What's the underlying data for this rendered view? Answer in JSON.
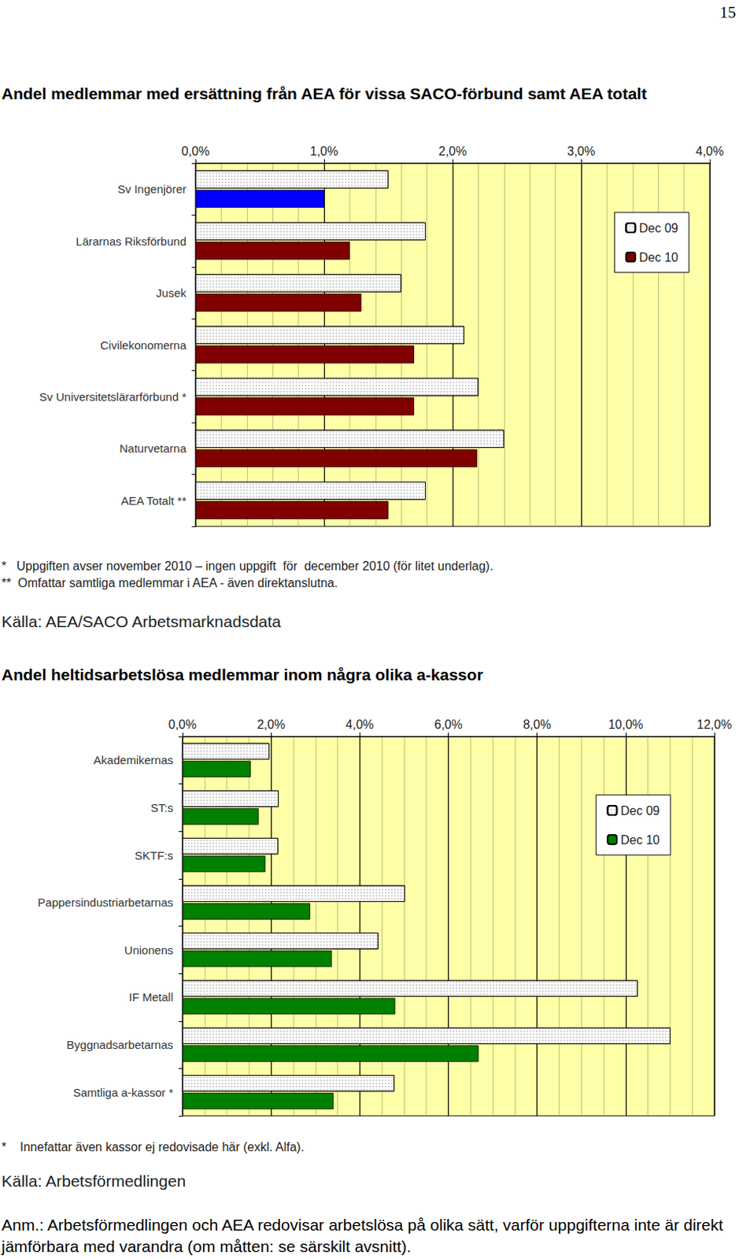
{
  "page_number": "15",
  "chart_data": [
    {
      "type": "bar",
      "orientation": "horizontal",
      "title": "Andel medlemmar med ersättning från AEA för vissa SACO-förbund samt AEA totalt",
      "categories": [
        "Sv Ingenjörer",
        "Lärarnas Riksförbund",
        "Jusek",
        "Civilekonomerna",
        "Sv Universitetslärarförbund *",
        "Naturvetarna",
        "AEA Totalt **"
      ],
      "series": [
        {
          "name": "Dec 09",
          "color": "#ffffff",
          "values": [
            1.5,
            1.79,
            1.6,
            2.09,
            2.2,
            2.4,
            1.79
          ]
        },
        {
          "name": "Dec 10",
          "color": "#800000",
          "colors": [
            "#0000ff",
            "#800000",
            "#800000",
            "#800000",
            "#800000",
            "#800000",
            "#800000"
          ],
          "values": [
            1.0,
            1.2,
            1.29,
            1.7,
            1.7,
            2.19,
            1.5
          ]
        }
      ],
      "xlim": [
        0,
        4
      ],
      "xticks": [
        {
          "value": 0,
          "label": "0,0%"
        },
        {
          "value": 1,
          "label": "1,0%"
        },
        {
          "value": 2,
          "label": "2,0%"
        },
        {
          "value": 3,
          "label": "3,0%"
        },
        {
          "value": 4,
          "label": "4,0%"
        }
      ],
      "grid": true,
      "legend": "upper right",
      "annotations": [
        "*   Uppgiften avser november 2010 – ingen uppgift  för  december 2010 (för litet underlag).",
        "**  Omfattar samtliga medlemmar i AEA - även direktanslutna."
      ],
      "source": "Källa: AEA/SACO Arbetsmarknadsdata"
    },
    {
      "type": "bar",
      "orientation": "horizontal",
      "title": "Andel heltidsarbetslösa medlemmar inom några olika a-kassor",
      "categories": [
        "Akademikernas",
        "ST:s",
        "SKTF:s",
        "Pappersindustriarbetarnas",
        "Unionens",
        "IF Metall",
        "Byggnadsarbetarnas",
        "Samtliga a-kassor *"
      ],
      "series": [
        {
          "name": "Dec 09",
          "color": "#ffffff",
          "values": [
            1.96,
            2.17,
            2.16,
            5.02,
            4.42,
            10.27,
            11.01,
            4.78
          ]
        },
        {
          "name": "Dec 10",
          "color": "#008000",
          "values": [
            1.54,
            1.72,
            1.87,
            2.88,
            3.37,
            4.8,
            6.68,
            3.41
          ]
        }
      ],
      "xlim": [
        0,
        12
      ],
      "xticks": [
        {
          "value": 0,
          "label": "0,0%"
        },
        {
          "value": 2,
          "label": "2,0%"
        },
        {
          "value": 4,
          "label": "4,0%"
        },
        {
          "value": 6,
          "label": "6,0%"
        },
        {
          "value": 8,
          "label": "8,0%"
        },
        {
          "value": 10,
          "label": "10,0%"
        },
        {
          "value": 12,
          "label": "12,0%"
        }
      ],
      "grid": true,
      "legend": "upper right",
      "annotations": [
        "*    Innefattar även kassor ej redovisade här (exkl. Alfa)."
      ],
      "source": "Källa: Arbetsförmedlingen"
    }
  ],
  "note": "Anm.: Arbetsförmedlingen och AEA redovisar arbetslösa på olika sätt, varför uppgifterna inte är direkt jämförbara med varandra (om måtten: se särskilt avsnitt)."
}
